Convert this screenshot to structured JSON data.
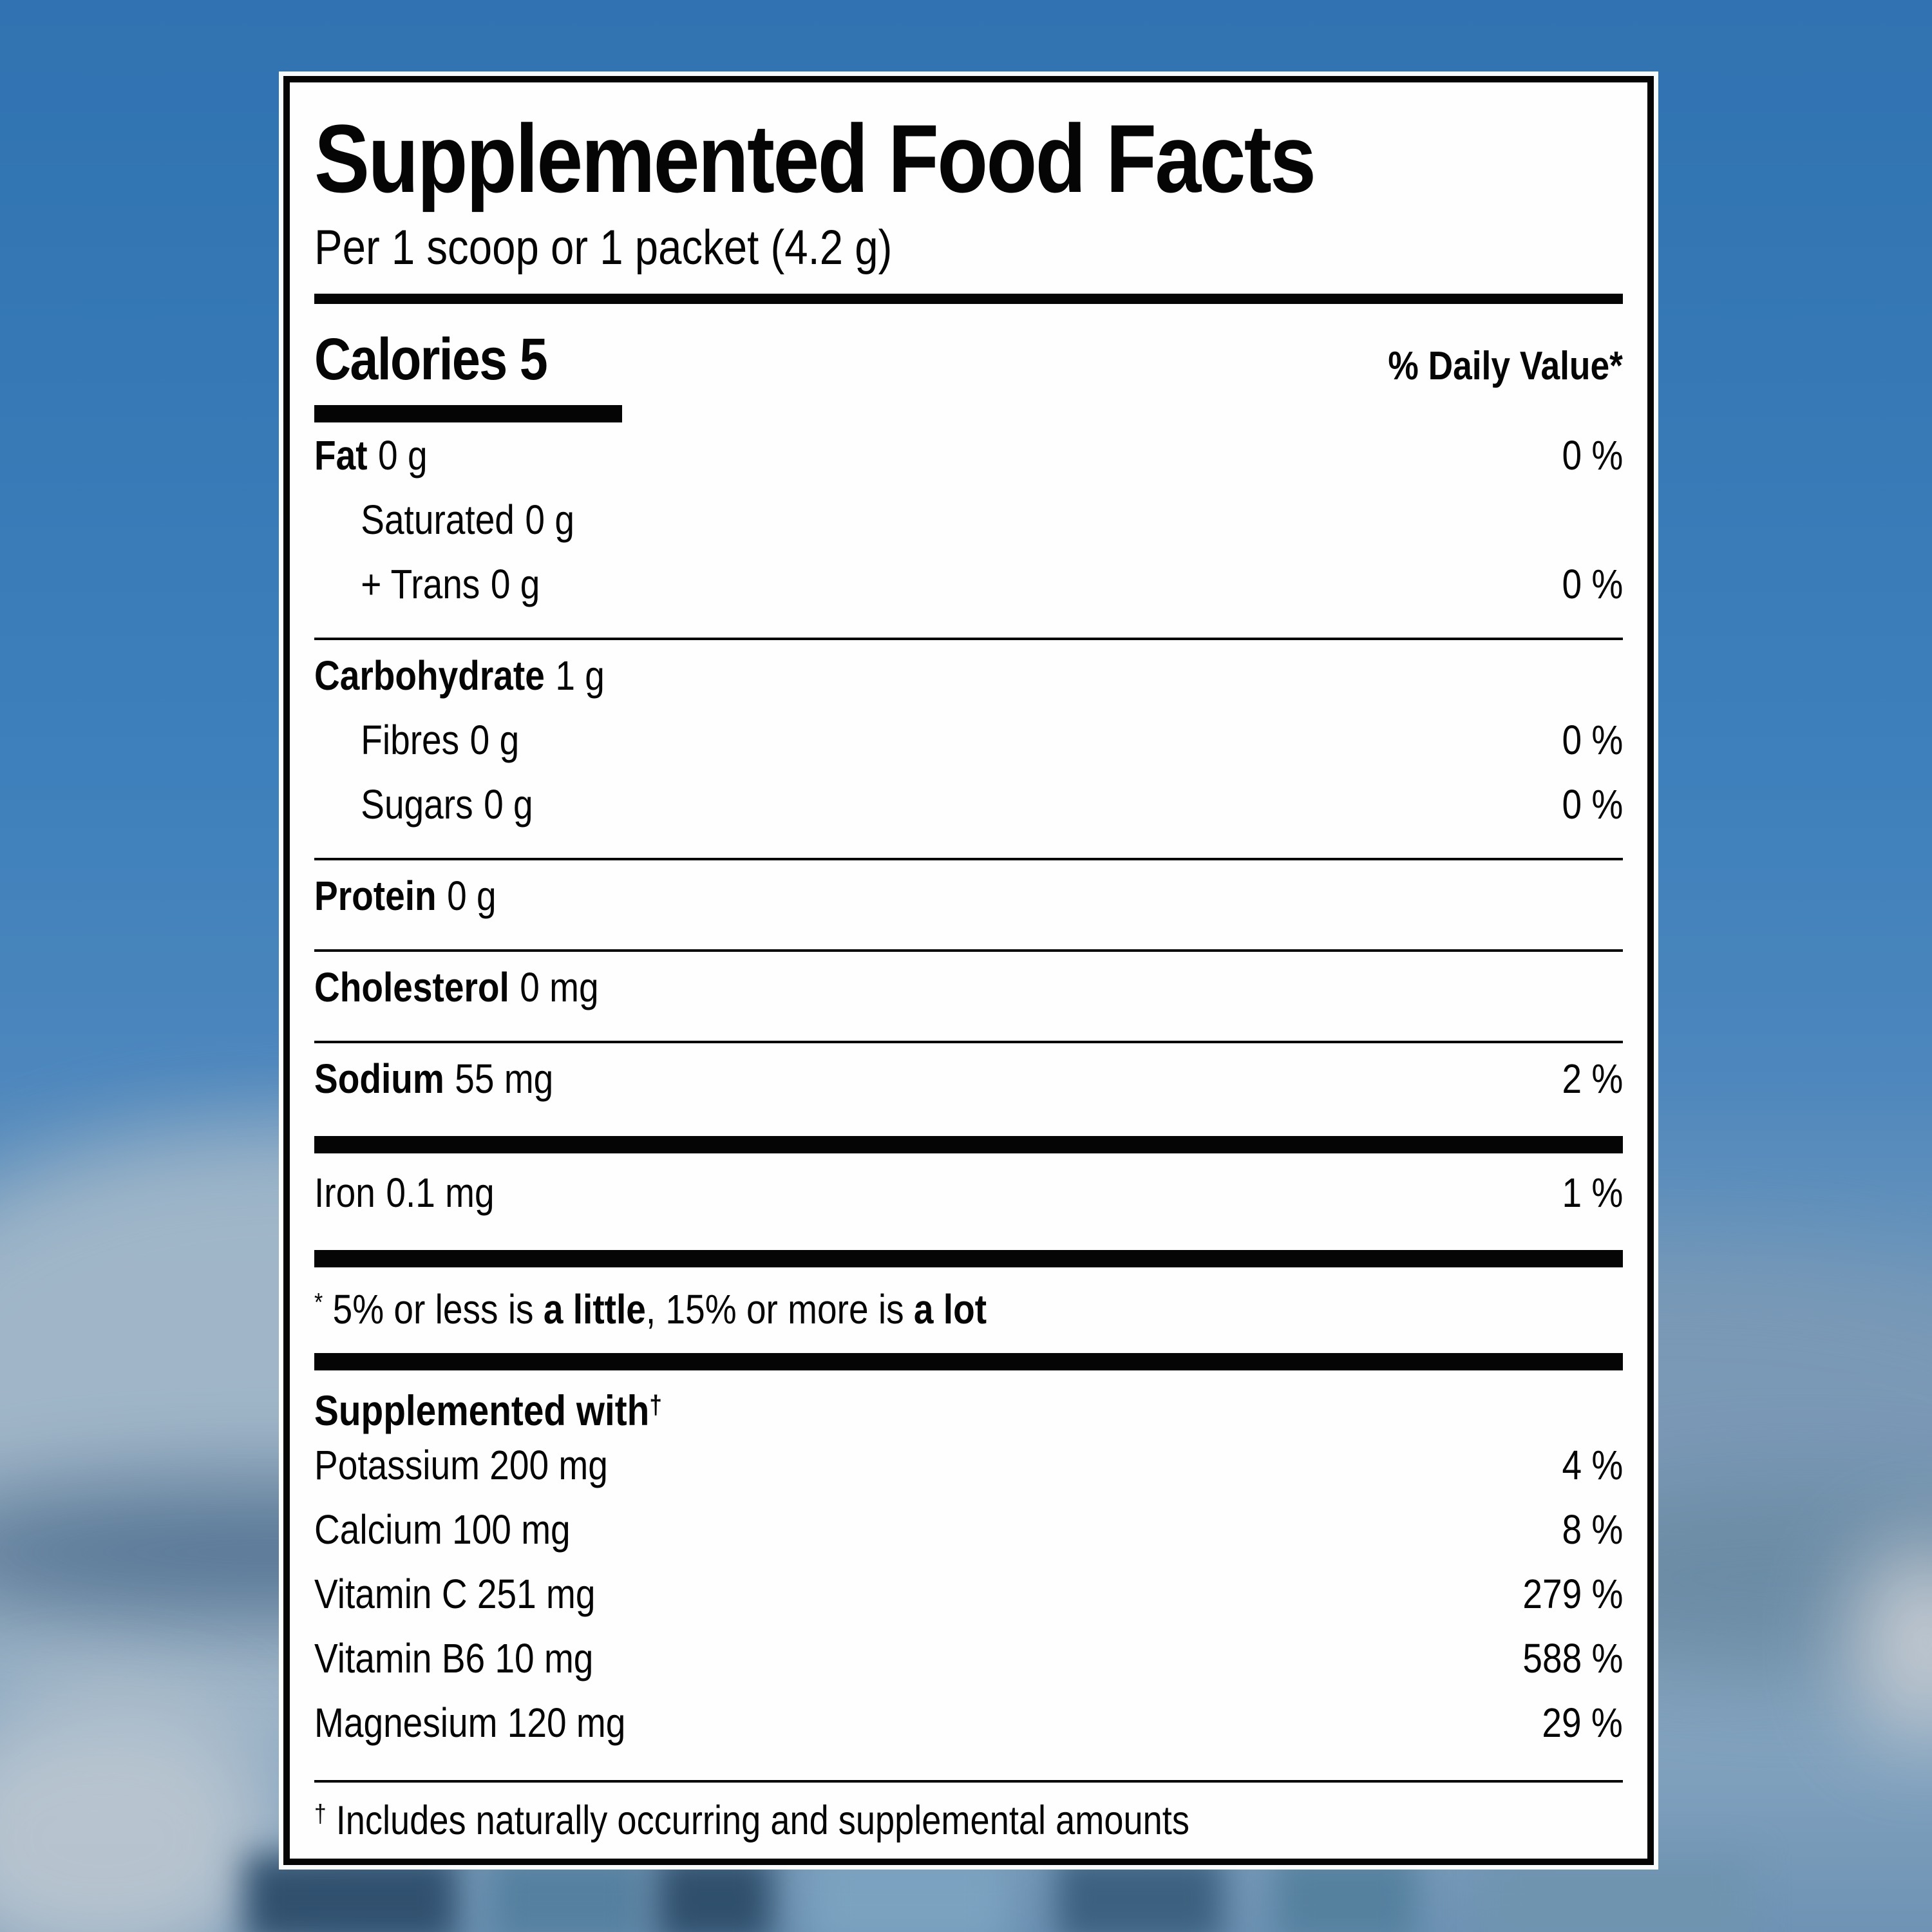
{
  "background": {
    "sky_color": "#3578b5",
    "blur_tones": [
      "#a3b8c9",
      "#47688a",
      "#7b99b6",
      "#c9ced4",
      "#30506e"
    ]
  },
  "label": {
    "title": "Supplemented Food Facts",
    "serving": "Per 1 scoop or 1 packet (4.2 g)",
    "calories_label": "Calories 5",
    "daily_value_header": "% Daily Value*",
    "nutrients": [
      {
        "name": "Fat",
        "amount": "0 g",
        "dv": "0 %"
      },
      {
        "name": "Saturated",
        "amount": "0 g",
        "dv": ""
      },
      {
        "name": "+ Trans",
        "amount": "0 g",
        "dv": "0 %"
      },
      {
        "name": "Carbohydrate",
        "amount": "1 g",
        "dv": ""
      },
      {
        "name": "Fibres",
        "amount": "0 g",
        "dv": "0 %"
      },
      {
        "name": "Sugars",
        "amount": "0 g",
        "dv": "0 %"
      },
      {
        "name": "Protein",
        "amount": "0 g",
        "dv": ""
      },
      {
        "name": "Cholesterol",
        "amount": "0 mg",
        "dv": ""
      },
      {
        "name": "Sodium",
        "amount": "55 mg",
        "dv": "2 %"
      },
      {
        "name": "Iron",
        "amount": "0.1 mg",
        "dv": "1 %"
      }
    ],
    "footnote": {
      "marker": "*",
      "part1": "5% or less is ",
      "bold1": "a little",
      "part2": ", 15% or more is ",
      "bold2": "a lot"
    },
    "supplemented": {
      "heading": "Supplemented with",
      "dagger": "†",
      "items": [
        {
          "name": "Potassium 200 mg",
          "dv": "4 %"
        },
        {
          "name": "Calcium 100 mg",
          "dv": "8 %"
        },
        {
          "name": "Vitamin C 251 mg",
          "dv": "279 %"
        },
        {
          "name": "Vitamin B6 10 mg",
          "dv": "588 %"
        },
        {
          "name": "Magnesium 120 mg",
          "dv": "29 %"
        }
      ],
      "note_marker": "†",
      "note": "Includes naturally occurring and supplemental amounts"
    }
  }
}
